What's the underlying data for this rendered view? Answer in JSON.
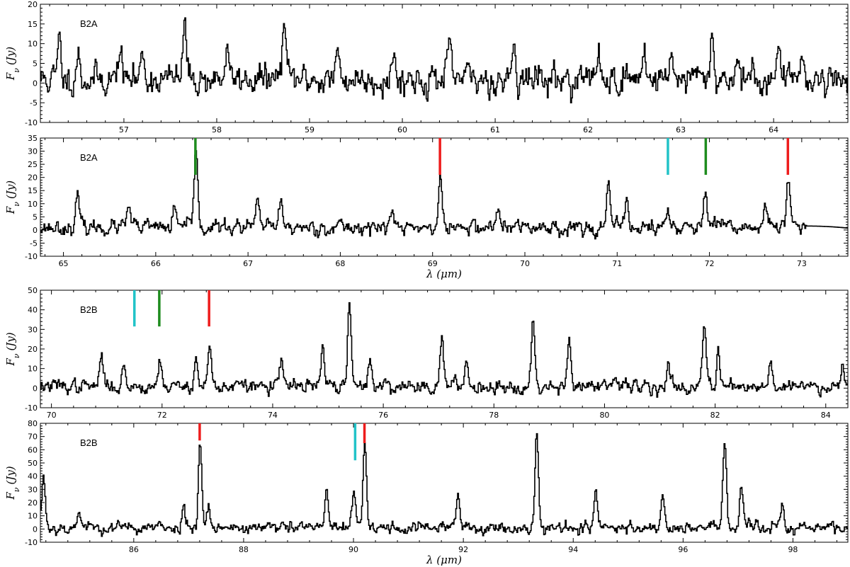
{
  "chart_data": [
    {
      "type": "line",
      "panel_label": "B2A",
      "xlabel": "",
      "ylabel": "F_ν (Jy)",
      "xlim": [
        56.1,
        64.8
      ],
      "ylim": [
        -10,
        20
      ],
      "xticks": [
        57,
        58,
        59,
        60,
        61,
        62,
        63,
        64
      ],
      "yticks": [
        -10,
        -5,
        0,
        5,
        10,
        15,
        20
      ],
      "noise": 2.2,
      "seed": 11,
      "peaks": [
        [
          56.3,
          10.5
        ],
        [
          56.5,
          8
        ],
        [
          56.95,
          9.5
        ],
        [
          57.2,
          8
        ],
        [
          57.65,
          15.5
        ],
        [
          58.1,
          8
        ],
        [
          58.72,
          16.5
        ],
        [
          59.3,
          7
        ],
        [
          59.9,
          7
        ],
        [
          60.5,
          8
        ],
        [
          61.2,
          12
        ],
        [
          62.1,
          7
        ],
        [
          62.6,
          10
        ],
        [
          62.9,
          9
        ],
        [
          63.33,
          12.5
        ],
        [
          63.6,
          7
        ],
        [
          64.05,
          10
        ],
        [
          64.3,
          9
        ]
      ],
      "markers": []
    },
    {
      "type": "line",
      "panel_label": "B2A",
      "xlabel": "λ (μm)",
      "ylabel": "F_ν (Jy)",
      "xlim": [
        64.75,
        73.5
      ],
      "ylim": [
        -10,
        35
      ],
      "xticks": [
        65,
        66,
        67,
        68,
        69,
        70,
        71,
        72,
        73
      ],
      "yticks": [
        -10,
        -5,
        0,
        5,
        10,
        15,
        20,
        25,
        30,
        35
      ],
      "noise": 1.6,
      "seed": 23,
      "peaks": [
        [
          65.15,
          13
        ],
        [
          65.7,
          9
        ],
        [
          66.2,
          8
        ],
        [
          66.43,
          32
        ],
        [
          67.1,
          12
        ],
        [
          67.35,
          11
        ],
        [
          68.55,
          7
        ],
        [
          69.08,
          19
        ],
        [
          69.7,
          8
        ],
        [
          70.9,
          17
        ],
        [
          71.1,
          12
        ],
        [
          71.55,
          8
        ],
        [
          71.95,
          15
        ],
        [
          72.6,
          10
        ],
        [
          72.85,
          19
        ]
      ],
      "smooth_from": 73.05,
      "markers": [
        {
          "x": 66.43,
          "color": "#1e8c1e",
          "y_from": 21,
          "y_to": 35
        },
        {
          "x": 69.08,
          "color": "#ee1c1c",
          "y_from": 21,
          "y_to": 35
        },
        {
          "x": 71.55,
          "color": "#22c3c8",
          "y_from": 21,
          "y_to": 35
        },
        {
          "x": 71.96,
          "color": "#1e8c1e",
          "y_from": 21,
          "y_to": 35
        },
        {
          "x": 72.85,
          "color": "#ee1c1c",
          "y_from": 21,
          "y_to": 35
        }
      ]
    },
    {
      "type": "line",
      "panel_label": "B2B",
      "xlabel": "",
      "ylabel": "F_ν (Jy)",
      "xlim": [
        69.8,
        84.4
      ],
      "ylim": [
        -10,
        50
      ],
      "xticks": [
        70,
        72,
        74,
        76,
        78,
        80,
        82,
        84
      ],
      "yticks": [
        -10,
        0,
        10,
        20,
        30,
        40,
        50
      ],
      "noise": 2.0,
      "seed": 37,
      "peaks": [
        [
          70.9,
          17
        ],
        [
          71.3,
          10
        ],
        [
          71.95,
          15
        ],
        [
          72.6,
          15
        ],
        [
          72.85,
          22
        ],
        [
          74.15,
          14
        ],
        [
          74.9,
          21
        ],
        [
          75.38,
          42
        ],
        [
          75.75,
          16
        ],
        [
          77.05,
          27
        ],
        [
          77.5,
          14
        ],
        [
          78.7,
          34
        ],
        [
          79.35,
          27
        ],
        [
          81.15,
          12
        ],
        [
          81.8,
          33
        ],
        [
          82.05,
          22
        ],
        [
          83.0,
          14
        ],
        [
          84.3,
          14
        ]
      ],
      "markers": [
        {
          "x": 71.5,
          "color": "#22c3c8",
          "y_from": 31.5,
          "y_to": 50
        },
        {
          "x": 71.95,
          "color": "#1e8c1e",
          "y_from": 31.5,
          "y_to": 50
        },
        {
          "x": 72.85,
          "color": "#ee1c1c",
          "y_from": 31.5,
          "y_to": 50
        }
      ]
    },
    {
      "type": "line",
      "panel_label": "B2B",
      "xlabel": "λ (μm)",
      "ylabel": "F_ν (Jy)",
      "xlim": [
        84.3,
        99
      ],
      "ylim": [
        -10,
        80
      ],
      "xticks": [
        86,
        88,
        90,
        92,
        94,
        96,
        98
      ],
      "yticks": [
        -10,
        0,
        10,
        20,
        30,
        40,
        50,
        60,
        70,
        80
      ],
      "noise": 2.6,
      "seed": 53,
      "peaks": [
        [
          84.35,
          40
        ],
        [
          85.0,
          15
        ],
        [
          86.9,
          17
        ],
        [
          87.2,
          67
        ],
        [
          87.35,
          20
        ],
        [
          89.5,
          30
        ],
        [
          90.0,
          28
        ],
        [
          90.2,
          64
        ],
        [
          91.9,
          26
        ],
        [
          93.33,
          74
        ],
        [
          94.4,
          28
        ],
        [
          95.62,
          27
        ],
        [
          96.75,
          67
        ],
        [
          97.05,
          32
        ],
        [
          97.8,
          17
        ]
      ],
      "markers": [
        {
          "x": 87.2,
          "color": "#ee1c1c",
          "y_from": 67,
          "y_to": 80
        },
        {
          "x": 90.03,
          "color": "#22c3c8",
          "y_from": 52,
          "y_to": 80
        },
        {
          "x": 90.2,
          "color": "#ee1c1c",
          "y_from": 65,
          "y_to": 80
        }
      ]
    }
  ]
}
